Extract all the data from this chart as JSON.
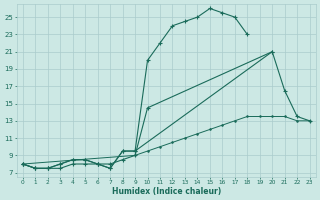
{
  "xlabel": "Humidex (Indice chaleur)",
  "bg_color": "#cce8e4",
  "grid_color": "#aacccc",
  "line_color": "#1a6b5a",
  "xlim": [
    -0.5,
    23.5
  ],
  "ylim": [
    6.5,
    26.5
  ],
  "xticks": [
    0,
    1,
    2,
    3,
    4,
    5,
    6,
    7,
    8,
    9,
    10,
    11,
    12,
    13,
    14,
    15,
    16,
    17,
    18,
    19,
    20,
    21,
    22,
    23
  ],
  "yticks": [
    7,
    9,
    11,
    13,
    15,
    17,
    19,
    21,
    23,
    25
  ],
  "line1_x": [
    0,
    1,
    2,
    3,
    4,
    5,
    6,
    7,
    8,
    9,
    10,
    11,
    12,
    13,
    14,
    15,
    16,
    17,
    18
  ],
  "line1_y": [
    8,
    7.5,
    7.5,
    7.5,
    8,
    8,
    8,
    7.5,
    9.5,
    9.5,
    20,
    22,
    24,
    24.5,
    25,
    26,
    25.5,
    25,
    23
  ],
  "line2_x": [
    0,
    1,
    2,
    3,
    4,
    5,
    6,
    7,
    8,
    9,
    10,
    20,
    21,
    22,
    23
  ],
  "line2_y": [
    8,
    7.5,
    7.5,
    8,
    8.5,
    8.5,
    8,
    8,
    8.5,
    9,
    14.5,
    21,
    16.5,
    13.5,
    13
  ],
  "line3_x": [
    0,
    1,
    2,
    3,
    4,
    5,
    6,
    7,
    8,
    9,
    20
  ],
  "line3_y": [
    8,
    7.5,
    7.5,
    8,
    8.5,
    8.5,
    8,
    7.5,
    9.5,
    9.5,
    21
  ],
  "line4_x": [
    0,
    9,
    10,
    11,
    12,
    13,
    14,
    15,
    16,
    17,
    18,
    19,
    20,
    21,
    22,
    23
  ],
  "line4_y": [
    8,
    9,
    9.5,
    10,
    10.5,
    11,
    11.5,
    12,
    12.5,
    13,
    13.5,
    13.5,
    13.5,
    13.5,
    13,
    13
  ]
}
